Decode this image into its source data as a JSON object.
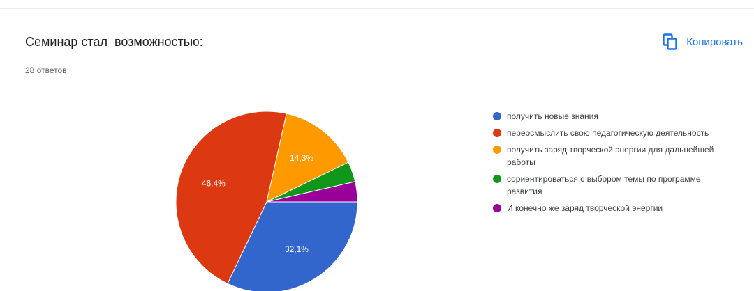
{
  "question": {
    "title": "Семинар стал  возможностью:",
    "response_count": "28 ответов"
  },
  "toolbar": {
    "copy_label": "Копировать",
    "copy_icon": "copy-icon",
    "accent_color": "#1a73e8"
  },
  "chart_data": {
    "type": "pie",
    "title": "Семинар стал  возможностью:",
    "total_responses": 28,
    "legend_position": "right",
    "series": [
      {
        "name": "получить новые знания",
        "value": 32.1,
        "label": "32,1%",
        "color": "#3366cc"
      },
      {
        "name": "переосмыслить свою педагогическую деятельность",
        "value": 46.4,
        "label": "46,4%",
        "color": "#dc3912"
      },
      {
        "name": "получить заряд творческой энергии для дальнейшей работы",
        "value": 14.3,
        "label": "14,3%",
        "color": "#ff9900"
      },
      {
        "name": "сориентироваться с выбором темы по программе развития",
        "value": 3.6,
        "label": "",
        "color": "#109618"
      },
      {
        "name": "И конечно же заряд творческой энергии",
        "value": 3.6,
        "label": "",
        "color": "#990099"
      }
    ]
  }
}
